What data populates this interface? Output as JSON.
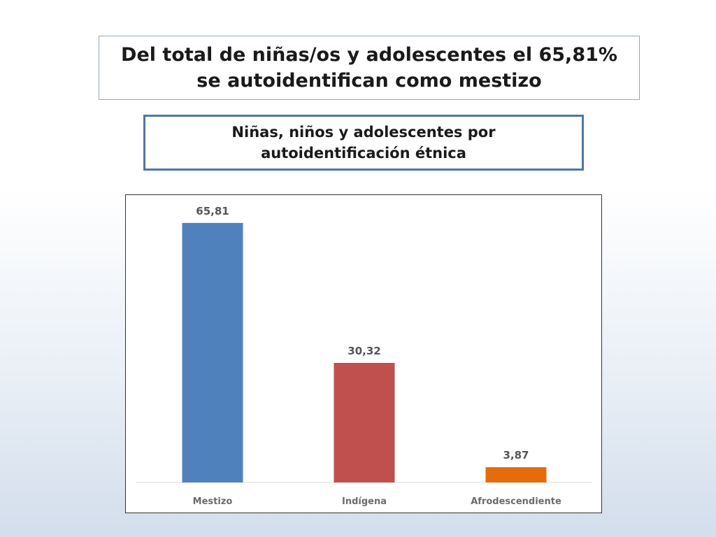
{
  "headline": "Del total de niñas/os y adolescentes el 65,81% se autoidentifican como mestizo",
  "chart_data": {
    "type": "bar",
    "title": "Niñas, niños y adolescentes por autoidentificación étnica",
    "xlabel": "",
    "ylabel": "",
    "categories": [
      "Mestizo",
      "Indígena",
      "Afrodescendiente"
    ],
    "values": [
      65.81,
      30.32,
      3.87
    ],
    "value_labels": [
      "65,81",
      "30,32",
      "3,87"
    ],
    "colors": [
      "#4f81bd",
      "#c0504d",
      "#e46c0a"
    ],
    "ylim": [
      0,
      70
    ],
    "grid": false,
    "legend": "none"
  }
}
